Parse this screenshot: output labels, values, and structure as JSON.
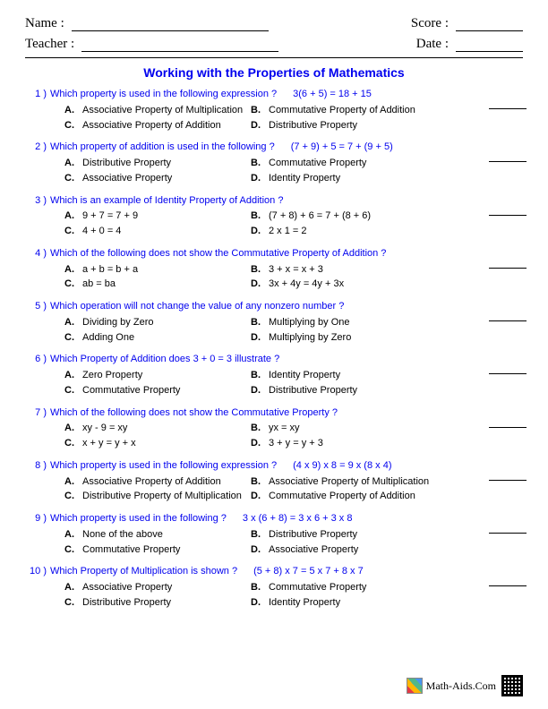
{
  "header": {
    "name_label": "Name :",
    "score_label": "Score :",
    "teacher_label": "Teacher :",
    "date_label": "Date :"
  },
  "title": "Working with the Properties of Mathematics",
  "questions": [
    {
      "num": "1 )",
      "text": "Which property is used in the following expression ?",
      "expr": "3(6 + 5) = 18 + 15",
      "a": "Associative Property of Multiplication",
      "b": "Commutative Property of Addition",
      "c": "Associative Property of Addition",
      "d": "Distributive Property"
    },
    {
      "num": "2 )",
      "text": "Which property of addition is used in the following ?",
      "expr": "(7 + 9) + 5 = 7 +  (9 + 5)",
      "a": "Distributive Property",
      "b": "Commutative Property",
      "c": "Associative Property",
      "d": "Identity Property"
    },
    {
      "num": "3 )",
      "text": "Which is an example of Identity Property of Addition ?",
      "expr": "",
      "a": "9 + 7 = 7 + 9",
      "b": "(7 + 8) + 6 = 7 +  (8 + 6)",
      "c": "4 + 0 = 4",
      "d": "2 x 1 = 2"
    },
    {
      "num": "4 )",
      "text": "Which of the following does not show the Commutative Property of Addition ?",
      "expr": "",
      "a": "a + b = b + a",
      "b": "3 + x = x + 3",
      "c": "ab = ba",
      "d": "3x + 4y = 4y + 3x"
    },
    {
      "num": "5 )",
      "text": "Which operation will not change the value of any nonzero number ?",
      "expr": "",
      "a": "Dividing by Zero",
      "b": "Multiplying by One",
      "c": "Adding One",
      "d": "Multiplying by Zero"
    },
    {
      "num": "6 )",
      "text": "Which Property of Addition does 3 + 0 = 3 illustrate ?",
      "expr": "",
      "a": "Zero Property",
      "b": "Identity Property",
      "c": "Commutative Property",
      "d": "Distributive Property"
    },
    {
      "num": "7 )",
      "text": "Which of the following does not show the Commutative Property ?",
      "expr": "",
      "a": "xy - 9 = xy",
      "b": "yx = xy",
      "c": "x + y = y + x",
      "d": "3 + y = y + 3"
    },
    {
      "num": "8 )",
      "text": "Which property is used in the following expression ?",
      "expr": "(4 x 9) x 8 = 9 x  (8 x 4)",
      "a": "Associative Property of Addition",
      "b": "Associative Property of Multiplication",
      "c": "Distributive Property of Multiplication",
      "d": "Commutative Property of Addition"
    },
    {
      "num": "9 )",
      "text": "Which property is used in the following ?",
      "expr": "3 x (6 + 8) = 3 x 6 + 3 x 8",
      "a": "None of the above",
      "b": "Distributive Property",
      "c": "Commutative Property",
      "d": "Associative Property"
    },
    {
      "num": "10 )",
      "text": "Which Property of Multiplication is shown ?",
      "expr": "(5 + 8) x 7 = 5 x 7 + 8 x 7",
      "a": "Associative Property",
      "b": "Commutative Property",
      "c": "Distributive Property",
      "d": "Identity Property"
    }
  ],
  "footer": {
    "site": "Math-Aids.Com"
  }
}
